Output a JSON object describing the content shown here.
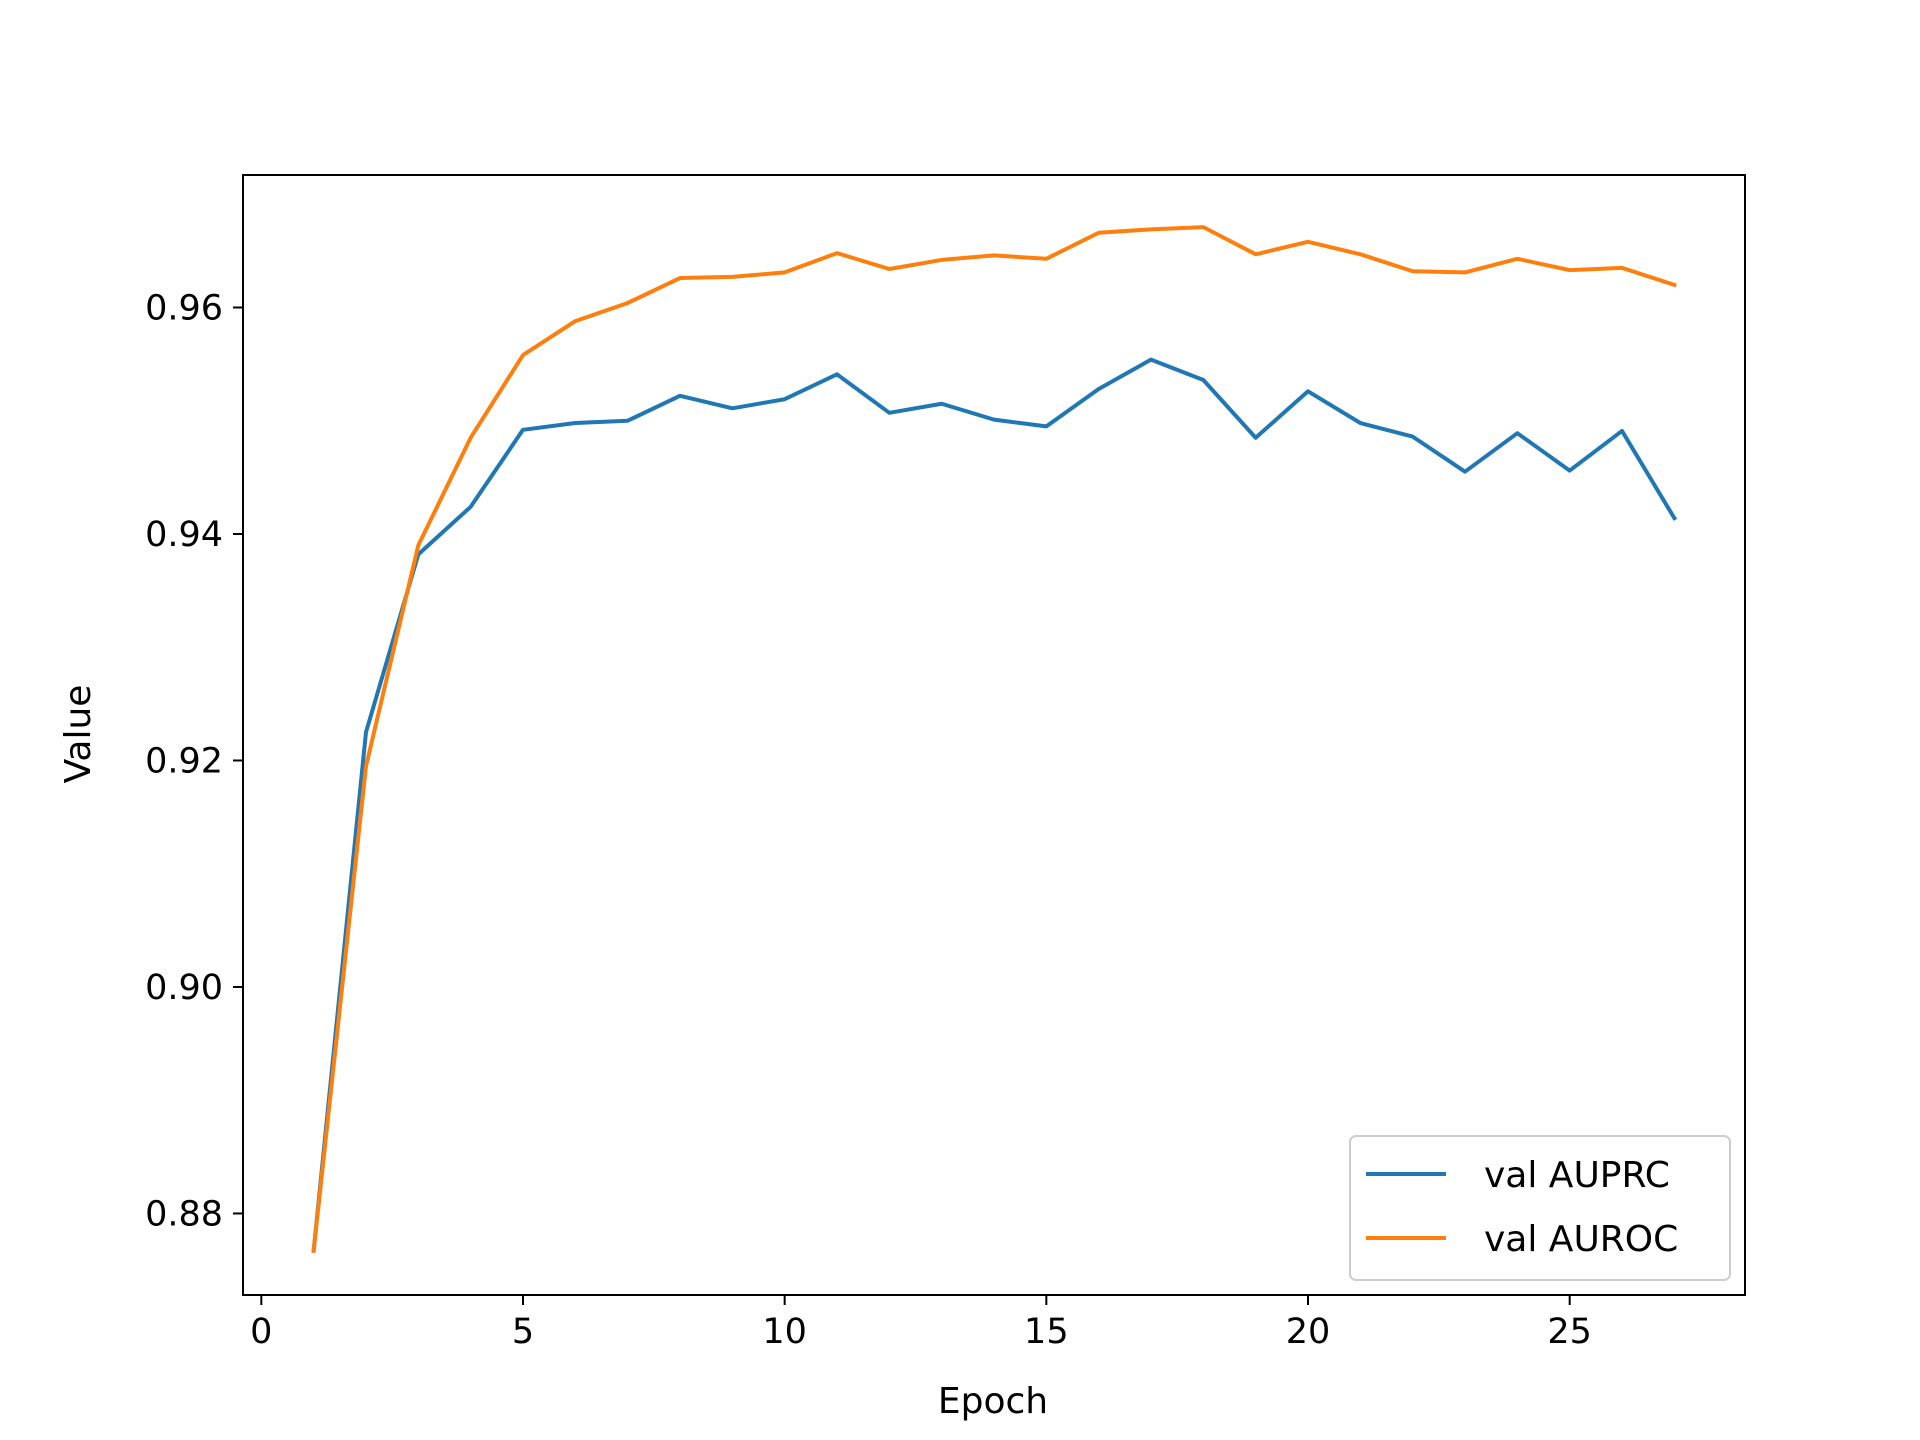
{
  "chart_data": {
    "type": "line",
    "title": "",
    "xlabel": "Epoch",
    "ylabel": "Value",
    "xlim": [
      -0.35,
      28.35
    ],
    "ylim": [
      0.8728,
      0.9717
    ],
    "xticks": [
      "0",
      "5",
      "10",
      "15",
      "20",
      "25"
    ],
    "xtick_values": [
      0,
      5,
      10,
      15,
      20,
      25
    ],
    "yticks": [
      "0.88",
      "0.90",
      "0.92",
      "0.94",
      "0.96"
    ],
    "ytick_values": [
      0.88,
      0.9,
      0.92,
      0.94,
      0.96
    ],
    "grid": false,
    "legend_position": "lower right",
    "x": [
      1,
      2,
      3,
      4,
      5,
      6,
      7,
      8,
      9,
      10,
      11,
      12,
      13,
      14,
      15,
      16,
      17,
      18,
      19,
      20,
      21,
      22,
      23,
      24,
      25,
      26,
      27
    ],
    "series": [
      {
        "name": "val AUPRC",
        "color": "#1f77b4",
        "values": [
          0.8767,
          0.9225,
          0.9382,
          0.9424,
          0.9492,
          0.9498,
          0.95,
          0.9522,
          0.9511,
          0.9519,
          0.9541,
          0.9507,
          0.9515,
          0.9501,
          0.9495,
          0.9528,
          0.9554,
          0.9536,
          0.9485,
          0.9526,
          0.9498,
          0.9486,
          0.9455,
          0.9489,
          0.9456,
          0.9491,
          0.9414
        ]
      },
      {
        "name": "val AUROC",
        "color": "#ff7f0e",
        "values": [
          0.8767,
          0.9195,
          0.939,
          0.9485,
          0.9558,
          0.9588,
          0.9604,
          0.9626,
          0.9627,
          0.9631,
          0.9648,
          0.9634,
          0.9642,
          0.9646,
          0.9643,
          0.9666,
          0.9669,
          0.9671,
          0.9647,
          0.9658,
          0.9647,
          0.9632,
          0.9631,
          0.9643,
          0.9633,
          0.9635,
          0.962
        ]
      }
    ]
  }
}
